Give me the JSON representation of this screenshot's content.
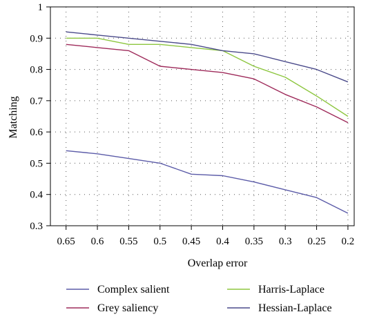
{
  "chart_data": {
    "type": "line",
    "title": "",
    "xlabel": "Overlap error",
    "ylabel": "Matching",
    "x": [
      0.65,
      0.6,
      0.55,
      0.5,
      0.45,
      0.4,
      0.35,
      0.3,
      0.25,
      0.2
    ],
    "x_tick_labels": [
      "0.65",
      "0.6",
      "0.55",
      "0.5",
      "0.45",
      "0.4",
      "0.35",
      "0.3",
      "0.25",
      "0.2"
    ],
    "x_reversed": true,
    "xlim": [
      0.675,
      0.19
    ],
    "ylim": [
      0.3,
      1.0
    ],
    "y_ticks": [
      0.3,
      0.4,
      0.5,
      0.6,
      0.7,
      0.8,
      0.9,
      1.0
    ],
    "y_tick_labels": [
      "0.3",
      "0.4",
      "0.5",
      "0.6",
      "0.7",
      "0.8",
      "0.9",
      "1"
    ],
    "grid": "dotted",
    "legend_position": "bottom",
    "series": [
      {
        "name": "Complex salient",
        "color": "#5b5ba8",
        "values": [
          0.54,
          0.53,
          0.515,
          0.5,
          0.465,
          0.46,
          0.44,
          0.415,
          0.39,
          0.34
        ]
      },
      {
        "name": "Grey saliency",
        "color": "#9e2a5a",
        "values": [
          0.88,
          0.87,
          0.86,
          0.81,
          0.8,
          0.79,
          0.77,
          0.72,
          0.68,
          0.63
        ]
      },
      {
        "name": "Harris-Laplace",
        "color": "#8dc63f",
        "values": [
          0.9,
          0.9,
          0.88,
          0.88,
          0.87,
          0.86,
          0.81,
          0.775,
          0.715,
          0.65
        ]
      },
      {
        "name": "Hessian-Laplace",
        "color": "#4a4a8a",
        "values": [
          0.92,
          0.91,
          0.9,
          0.89,
          0.88,
          0.86,
          0.85,
          0.825,
          0.8,
          0.76
        ]
      }
    ]
  }
}
